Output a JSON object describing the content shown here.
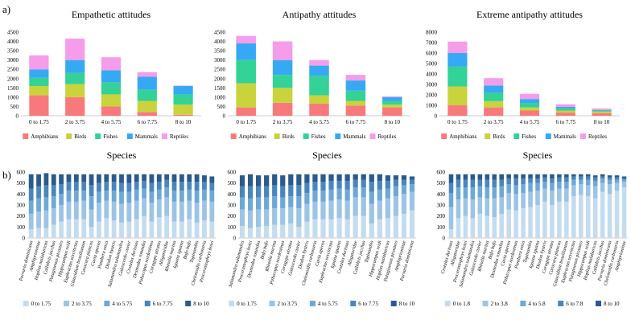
{
  "panel_labels": {
    "a": "a)",
    "b": "b)"
  },
  "chart_data": [
    {
      "type": "bar",
      "stacked": true,
      "title": "Empathetic attitudes",
      "categories": [
        "0 to 1.75",
        "2 to 3.75",
        "4 to 5.75",
        "6 to 7.75",
        "8 to 10"
      ],
      "yticks": [
        0,
        500,
        1000,
        1500,
        2000,
        2500,
        3000,
        3500,
        4000,
        4500
      ],
      "ylim": [
        0,
        4500
      ],
      "series": [
        {
          "name": "Amphibians",
          "color": "#f8797c",
          "values": [
            1100,
            1000,
            500,
            200,
            50
          ]
        },
        {
          "name": "Birds",
          "color": "#c9d33b",
          "values": [
            500,
            700,
            650,
            600,
            550
          ]
        },
        {
          "name": "Fishes",
          "color": "#33d296",
          "values": [
            450,
            600,
            650,
            600,
            550
          ]
        },
        {
          "name": "Mammals",
          "color": "#36a9f4",
          "values": [
            450,
            700,
            650,
            700,
            450
          ]
        },
        {
          "name": "Reptiles",
          "color": "#f59cea",
          "values": [
            750,
            1150,
            700,
            250,
            20
          ]
        }
      ]
    },
    {
      "type": "bar",
      "stacked": true,
      "title": "Antipathy attitudes",
      "categories": [
        "0 to 1.75",
        "2 to 3.75",
        "4 to 5.75",
        "6 to 7.75",
        "8 to 10"
      ],
      "yticks": [
        0,
        500,
        1000,
        1500,
        2000,
        2500,
        3000,
        3500,
        4000,
        4500
      ],
      "ylim": [
        0,
        4500
      ],
      "series": [
        {
          "name": "Amphibians",
          "color": "#f8797c",
          "values": [
            450,
            700,
            650,
            550,
            450
          ]
        },
        {
          "name": "Birds",
          "color": "#c9d33b",
          "values": [
            1300,
            800,
            450,
            250,
            150
          ]
        },
        {
          "name": "Fishes",
          "color": "#33d296",
          "values": [
            1250,
            700,
            1050,
            550,
            200
          ]
        },
        {
          "name": "Mammals",
          "color": "#36a9f4",
          "values": [
            900,
            800,
            550,
            550,
            200
          ]
        },
        {
          "name": "Reptiles",
          "color": "#f59cea",
          "values": [
            400,
            1000,
            300,
            300,
            50
          ]
        }
      ]
    },
    {
      "type": "bar",
      "stacked": true,
      "title": "Extreme antipathy attitudes",
      "categories": [
        "0 to 1.75",
        "2 to 3.75",
        "4 to 5.75",
        "6 to 7.75",
        "8 to 10"
      ],
      "yticks": [
        0,
        1000,
        2000,
        3000,
        4000,
        5000,
        6000,
        7000,
        8000
      ],
      "ylim": [
        0,
        8000
      ],
      "series": [
        {
          "name": "Amphibians",
          "color": "#f8797c",
          "values": [
            1000,
            800,
            500,
            300,
            250
          ]
        },
        {
          "name": "Birds",
          "color": "#c9d33b",
          "values": [
            1800,
            600,
            300,
            200,
            150
          ]
        },
        {
          "name": "Fishes",
          "color": "#33d296",
          "values": [
            1900,
            800,
            400,
            200,
            100
          ]
        },
        {
          "name": "Mammals",
          "color": "#36a9f4",
          "values": [
            1300,
            700,
            400,
            150,
            50
          ]
        },
        {
          "name": "Reptiles",
          "color": "#f59cea",
          "values": [
            1100,
            700,
            500,
            250,
            150
          ]
        }
      ]
    },
    {
      "type": "bar",
      "stacked": true,
      "title": "Species",
      "yticks": [
        0,
        100,
        200,
        300,
        400,
        500,
        600
      ],
      "ylim": [
        0,
        600
      ],
      "categories": [
        "Parvaria dominicana",
        "Amphiprioninae",
        "Hoplias malabaricus",
        "Callithrix jacchus",
        "Patagioenas picazuro",
        "Hippocampus reidi",
        "Euphractus sexcinctus",
        "Glaucidium brasilianum",
        "Caracara plancus",
        "Cavia aperea",
        "Panthera onca",
        "Diodon hystrix",
        "Salamandra salamandra",
        "Galeocerdo cuvier",
        "Crotalus durissus",
        "Desmodus rotundus",
        "Pithecopus nordestinus",
        "Coragyps atratus",
        "Alligatoridae",
        "Rhinella marina",
        "Iguana iguana",
        "Bufo bufo",
        "Tupinambis",
        "Chelonoidis carbonaria",
        "Procerastophrys boiei"
      ],
      "series": [
        {
          "name": "0 to 1.75",
          "color": "#c5dcef",
          "values": [
            80,
            90,
            90,
            120,
            150,
            170,
            170,
            170,
            100,
            150,
            180,
            160,
            140,
            150,
            170,
            200,
            150,
            190,
            200,
            150,
            150,
            170,
            140,
            160,
            150
          ]
        },
        {
          "name": "2 to 3.75",
          "color": "#9cc4e4",
          "values": [
            140,
            150,
            160,
            150,
            150,
            160,
            160,
            170,
            160,
            170,
            160,
            170,
            170,
            170,
            170,
            160,
            170,
            160,
            170,
            180,
            180,
            170,
            180,
            180,
            180
          ]
        },
        {
          "name": "4 to 5.75",
          "color": "#6ea9d6",
          "values": [
            120,
            120,
            120,
            110,
            100,
            100,
            100,
            90,
            120,
            100,
            90,
            100,
            110,
            100,
            100,
            90,
            100,
            90,
            90,
            100,
            100,
            100,
            110,
            100,
            100
          ]
        },
        {
          "name": "6 to 7.75",
          "color": "#4a86be",
          "values": [
            110,
            110,
            110,
            100,
            90,
            80,
            80,
            80,
            100,
            80,
            80,
            80,
            80,
            80,
            70,
            70,
            80,
            70,
            70,
            80,
            80,
            70,
            80,
            70,
            70
          ]
        },
        {
          "name": "8 to 10",
          "color": "#2a5b8c",
          "values": [
            130,
            110,
            110,
            100,
            90,
            70,
            70,
            70,
            100,
            80,
            70,
            70,
            80,
            80,
            70,
            60,
            80,
            70,
            50,
            70,
            70,
            70,
            70,
            60,
            60
          ]
        }
      ]
    },
    {
      "type": "bar",
      "stacked": true,
      "title": "Species",
      "yticks": [
        0,
        100,
        200,
        300,
        400,
        500,
        600
      ],
      "ylim": [
        0,
        600
      ],
      "categories": [
        "Salamandra salamandra",
        "Procerastophrys boiei",
        "Desmodus rotundus",
        "Bufo bufo",
        "Rhinella marina",
        "Pithecopus nordestinus",
        "Coragyps atratus",
        "Galeocerdo cuvier",
        "Diodon hystrix",
        "Chelonoidis carbonaria",
        "Cavia aperea",
        "Euphractus sexcinctus",
        "Iguana iguana",
        "Crotalus durissus",
        "Alligatoridae",
        "Callithrix jacchus",
        "Tupinambis",
        "Hippocampus reidi",
        "Hoplias malabaricus",
        "Patagioenas picazuro",
        "Amphiprioninae",
        "Parvaria dominicana"
      ],
      "series": [
        {
          "name": "0 to 1.75",
          "color": "#c5dcef",
          "values": [
            110,
            90,
            100,
            110,
            120,
            120,
            130,
            100,
            150,
            170,
            170,
            170,
            180,
            170,
            200,
            200,
            130,
            170,
            180,
            200,
            220,
            250
          ]
        },
        {
          "name": "2 to 3.75",
          "color": "#9cc4e4",
          "values": [
            150,
            160,
            160,
            150,
            150,
            150,
            150,
            170,
            160,
            160,
            160,
            170,
            170,
            170,
            170,
            170,
            180,
            170,
            180,
            180,
            180,
            170
          ]
        },
        {
          "name": "4 to 5.75",
          "color": "#6ea9d6",
          "values": [
            110,
            110,
            110,
            110,
            110,
            100,
            100,
            110,
            100,
            100,
            100,
            100,
            100,
            100,
            90,
            90,
            110,
            100,
            90,
            90,
            80,
            70
          ]
        },
        {
          "name": "6 to 7.75",
          "color": "#4a86be",
          "values": [
            100,
            110,
            100,
            100,
            100,
            100,
            100,
            100,
            90,
            80,
            80,
            80,
            70,
            80,
            70,
            70,
            90,
            80,
            70,
            60,
            50,
            40
          ]
        },
        {
          "name": "8 to 10",
          "color": "#2a5b8c",
          "values": [
            100,
            110,
            100,
            100,
            100,
            100,
            100,
            100,
            80,
            70,
            70,
            60,
            60,
            60,
            50,
            50,
            70,
            60,
            50,
            40,
            40,
            30
          ]
        }
      ]
    },
    {
      "type": "bar",
      "stacked": true,
      "title": "Species",
      "yticks": [
        0,
        100,
        200,
        300,
        400,
        500,
        600
      ],
      "ylim": [
        0,
        600
      ],
      "categories": [
        "Crotalus durissus",
        "Alligatoridae",
        "Procerastophrys boiei",
        "Salamandra salamandra",
        "Galeocerdo cuvier",
        "Rhinella marina",
        "Bufo bufo",
        "Desmodus rotundus",
        "Cavia aperea",
        "Pithecopus nordestinus",
        "Panthera onca",
        "Tupinambis",
        "Iguana iguana",
        "Diodon hystrix",
        "Coragyps atratus",
        "Caracara plancus",
        "Glaucidium brasilianum",
        "Euphractus sexcinctus",
        "Patagioenas picazuro",
        "Hippocampus reidi",
        "Hoplias malabaricus",
        "Callithrix jacchus",
        "Parvaria dominicana",
        "Chelonoidis carbonaria",
        "Amphiprioninae"
      ],
      "series": [
        {
          "name": "0 to 1.8",
          "color": "#c5dcef",
          "values": [
            80,
            180,
            200,
            180,
            220,
            200,
            190,
            220,
            260,
            250,
            270,
            280,
            300,
            330,
            300,
            330,
            330,
            380,
            390,
            380,
            360,
            420,
            400,
            430,
            460
          ]
        },
        {
          "name": "2 to 3.8",
          "color": "#9cc4e4",
          "values": [
            200,
            170,
            160,
            170,
            150,
            160,
            170,
            150,
            150,
            150,
            140,
            140,
            130,
            120,
            130,
            120,
            120,
            100,
            100,
            100,
            110,
            80,
            90,
            70,
            50
          ]
        },
        {
          "name": "4 to 5.8",
          "color": "#6ea9d6",
          "values": [
            130,
            110,
            100,
            110,
            100,
            100,
            100,
            100,
            80,
            80,
            80,
            80,
            70,
            60,
            70,
            60,
            60,
            50,
            40,
            50,
            50,
            40,
            40,
            30,
            20
          ]
        },
        {
          "name": "6 to 7.8",
          "color": "#4a86be",
          "values": [
            90,
            70,
            70,
            70,
            60,
            70,
            70,
            60,
            50,
            60,
            50,
            40,
            40,
            40,
            40,
            40,
            40,
            30,
            30,
            30,
            30,
            20,
            20,
            20,
            15
          ]
        },
        {
          "name": "8 to 10",
          "color": "#2a5b8c",
          "values": [
            80,
            50,
            50,
            50,
            50,
            50,
            50,
            50,
            40,
            40,
            40,
            40,
            40,
            30,
            40,
            30,
            30,
            20,
            20,
            20,
            20,
            20,
            20,
            20,
            15
          ]
        }
      ]
    }
  ]
}
